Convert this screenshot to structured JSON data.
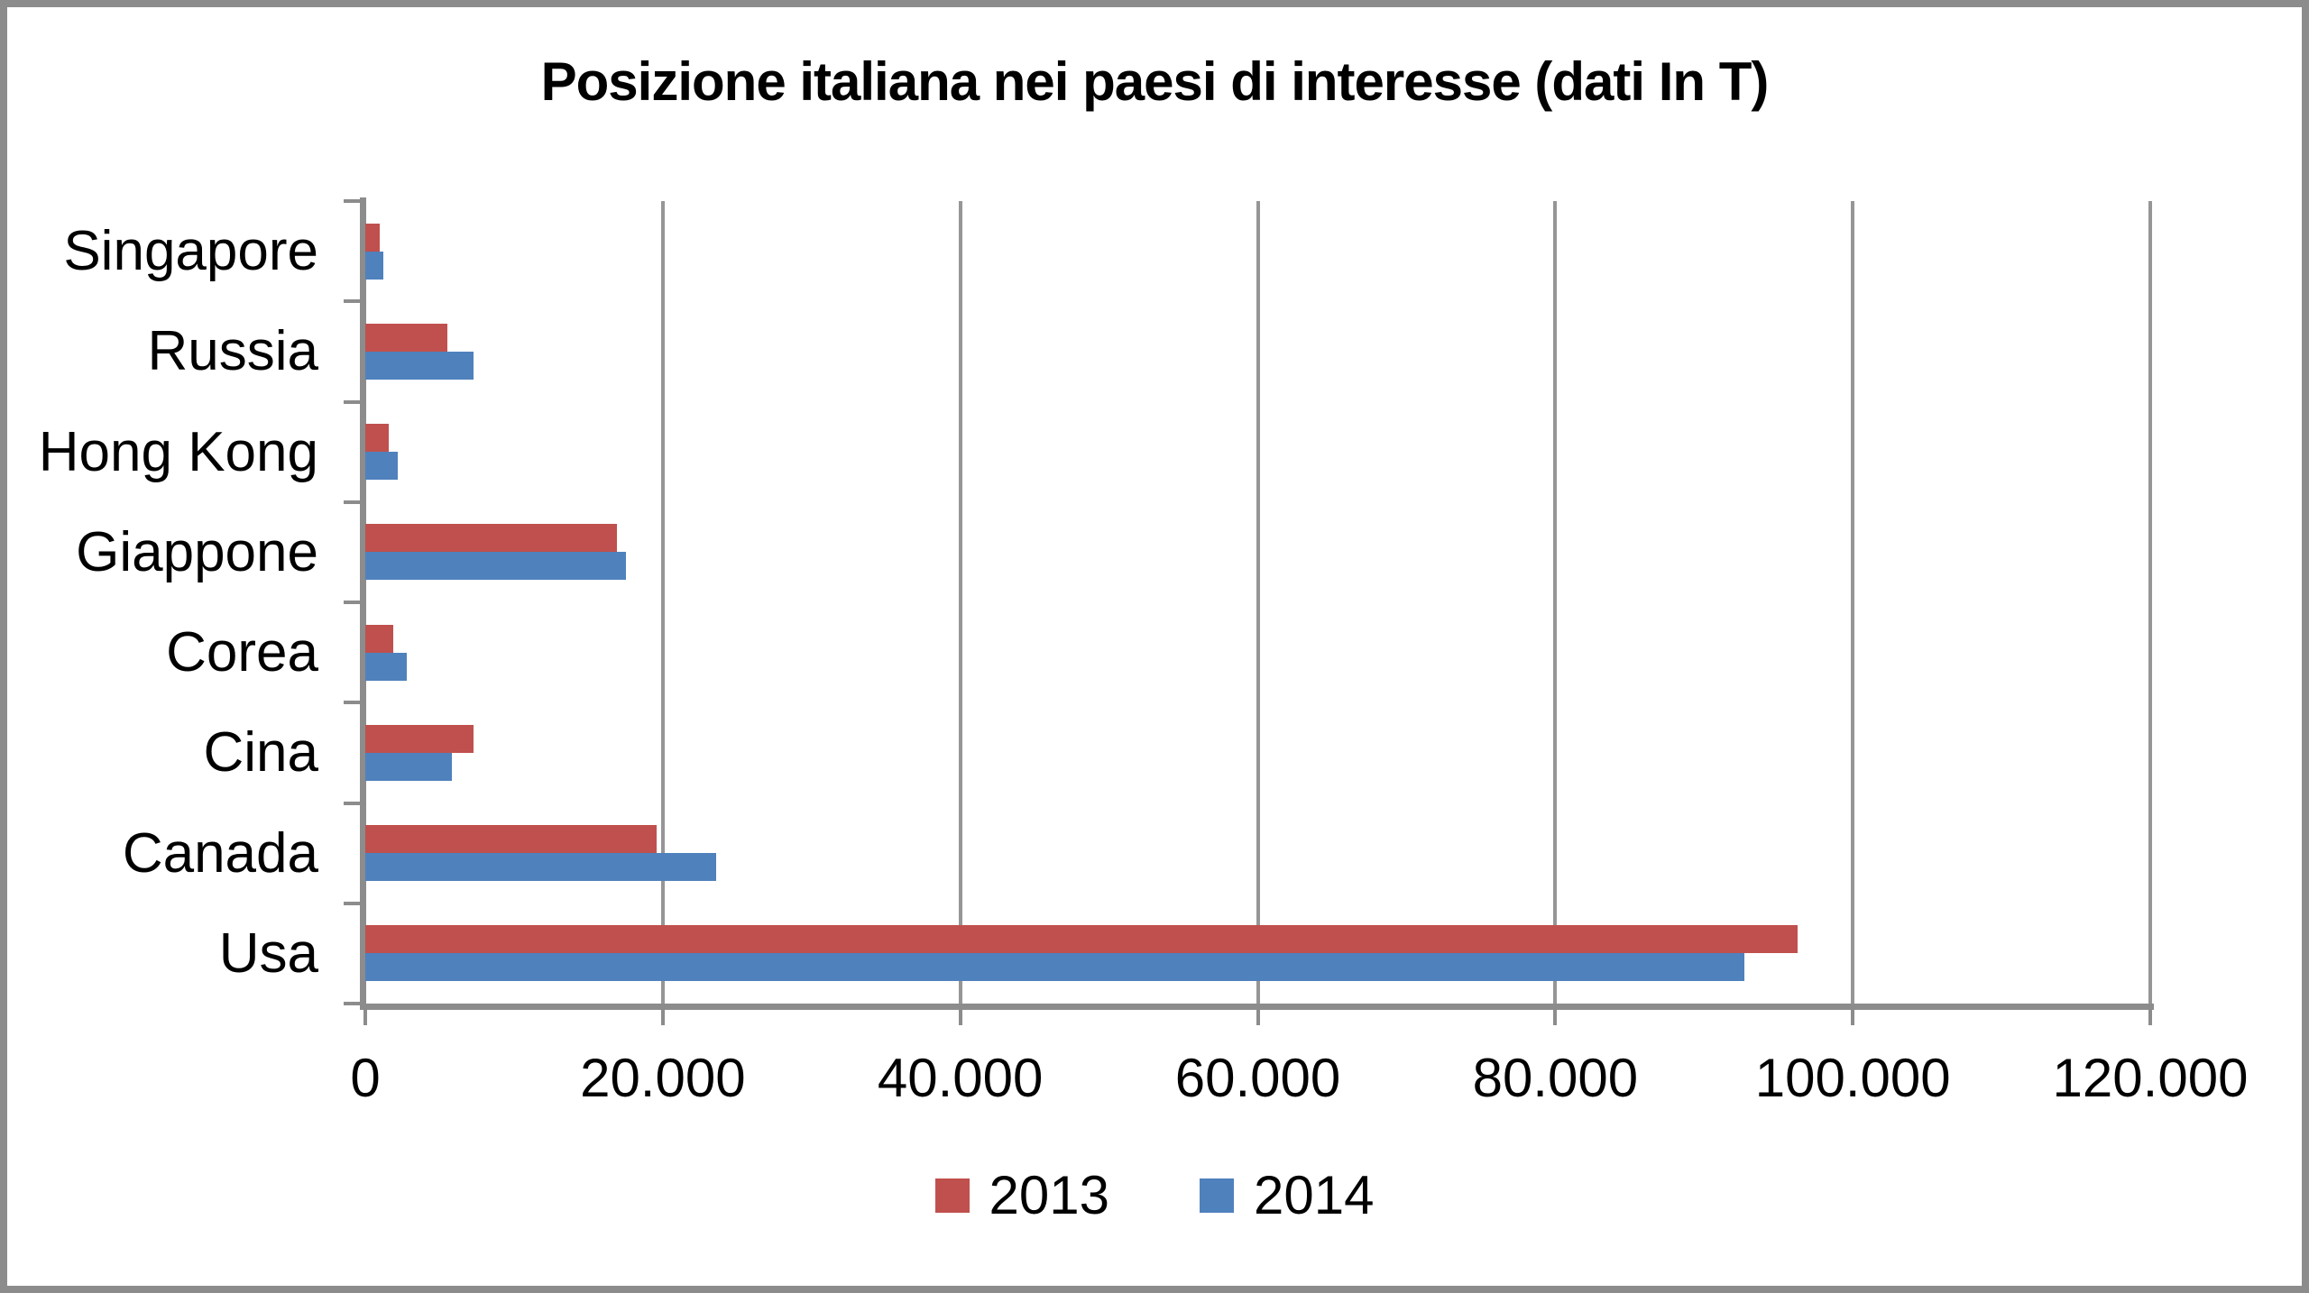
{
  "chart_data": {
    "type": "bar",
    "orientation": "horizontal",
    "title": "Posizione italiana nei paesi di interesse (dati In T)",
    "categories": [
      "Singapore",
      "Russia",
      "Hong Kong",
      "Giappone",
      "Corea",
      "Cina",
      "Canada",
      "Usa"
    ],
    "series": [
      {
        "name": "2013",
        "color": "#C0504D",
        "values": [
          1000,
          5500,
          1600,
          16900,
          1900,
          7300,
          19600,
          96300
        ]
      },
      {
        "name": "2014",
        "color": "#4F81BD",
        "values": [
          1200,
          7300,
          2200,
          17500,
          2800,
          5800,
          23600,
          92700
        ]
      }
    ],
    "xlim": [
      0,
      120000
    ],
    "x_ticks": [
      0,
      20000,
      40000,
      60000,
      80000,
      100000,
      120000
    ],
    "x_tick_labels": [
      "0",
      "20.000",
      "40.000",
      "60.000",
      "80.000",
      "100.000",
      "120.000"
    ],
    "grid": true,
    "legend_position": "bottom",
    "colors": {
      "axis": "#8C8C8C",
      "gridline": "#969696",
      "background": "#FFFFFF",
      "text": "#000000"
    }
  }
}
